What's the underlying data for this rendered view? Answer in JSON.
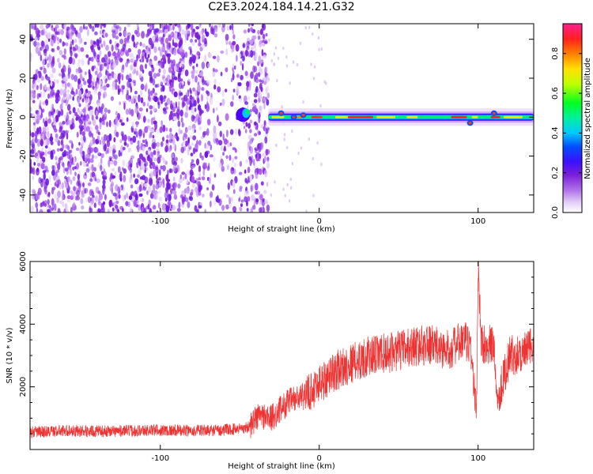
{
  "title": "C2E3.2024.184.14.21.G32",
  "colors": {
    "snr_line": "#ee3333",
    "spectrogram_noise": "#7a1fd6",
    "colormap": [
      "#f2e8fa",
      "#c9a2f0",
      "#8a2be2",
      "#4b00ff",
      "#0040ff",
      "#00c8ff",
      "#00ff66",
      "#ffff00",
      "#ff8800",
      "#ff2222",
      "#ff3388"
    ]
  },
  "chart_data": [
    {
      "type": "heatmap",
      "name": "spectrogram",
      "xlabel": "Height of straight line (km)",
      "ylabel": "Frequency (Hz)",
      "xlim": [
        -182,
        135
      ],
      "ylim": [
        -49,
        48
      ],
      "xticks": [
        -100,
        0,
        100
      ],
      "xtick_labels": [
        "-100",
        "0",
        "100"
      ],
      "yticks": [
        -40,
        -20,
        0,
        20,
        40
      ],
      "ytick_labels": [
        "-40",
        "-20",
        "0",
        "20",
        "40"
      ],
      "signal_ridge_x_start": -55,
      "signal_ridge_x_end": 135,
      "signal_frequency": 0,
      "noise_extent_x_end": -32,
      "colorbar": {
        "label": "Normalized spectral amplitude",
        "ticks": [
          0.0,
          0.2,
          0.4,
          0.6,
          0.8
        ],
        "tick_labels": [
          "0.0",
          "0.2",
          "0.4",
          "0.6",
          "0.8"
        ],
        "range": [
          0,
          0.95
        ]
      }
    },
    {
      "type": "line",
      "name": "snr",
      "xlabel": "Height of straight line (km)",
      "ylabel": "SNR (10 * v/v)",
      "xlim": [
        -182,
        135
      ],
      "ylim": [
        0,
        6000
      ],
      "xticks": [
        -100,
        0,
        100
      ],
      "xtick_labels": [
        "-100",
        "0",
        "100"
      ],
      "yticks": [
        2000,
        4000,
        6000
      ],
      "ytick_labels": [
        "2000",
        "4000",
        "6000"
      ],
      "x": [
        -182,
        -160,
        -140,
        -120,
        -100,
        -80,
        -60,
        -45,
        -38,
        -30,
        -20,
        -10,
        0,
        10,
        20,
        30,
        40,
        50,
        60,
        70,
        80,
        90,
        95,
        99,
        100,
        102,
        110,
        112,
        120,
        130,
        135
      ],
      "y": [
        550,
        600,
        580,
        600,
        620,
        600,
        620,
        700,
        1100,
        1000,
        1500,
        1700,
        2100,
        2500,
        2750,
        2950,
        3050,
        3150,
        3300,
        3350,
        3150,
        3450,
        3400,
        1200,
        5700,
        3400,
        3300,
        1600,
        3000,
        3100,
        3400
      ]
    }
  ]
}
